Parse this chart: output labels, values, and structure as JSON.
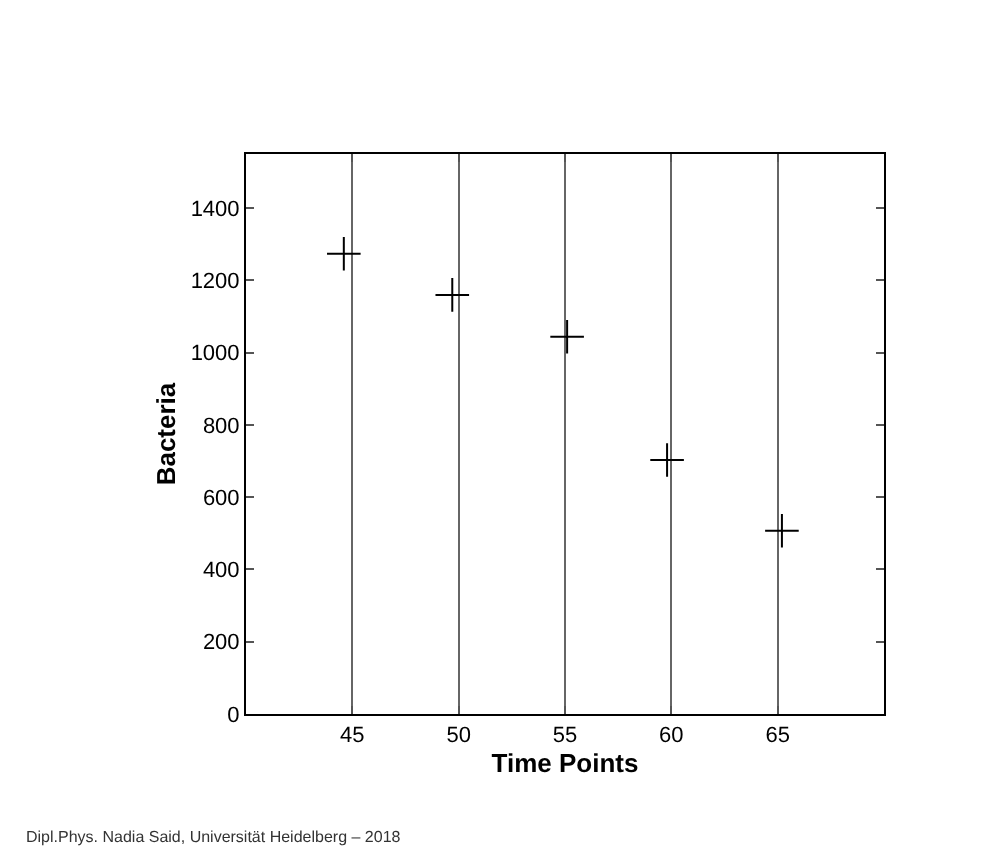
{
  "chart_data": {
    "type": "scatter",
    "xlabel": "Time Points",
    "ylabel": "Bacteria",
    "x": [
      44.6,
      49.7,
      55.1,
      59.8,
      65.2
    ],
    "series": [
      {
        "color": "#000000",
        "values": [
          1274,
          1160,
          1044,
          703,
          507
        ]
      }
    ],
    "xlim": [
      40,
      70
    ],
    "xticks": [
      45,
      50,
      55,
      60,
      65
    ],
    "ylim": [
      0,
      1550
    ],
    "yticks": [
      0,
      200,
      400,
      600,
      800,
      1000,
      1200,
      1400
    ],
    "grid": "x",
    "marker": "cross",
    "annotations": [
      "Dipl.Phys. Nadia Said, Universität Heidelberg – 2018"
    ]
  }
}
